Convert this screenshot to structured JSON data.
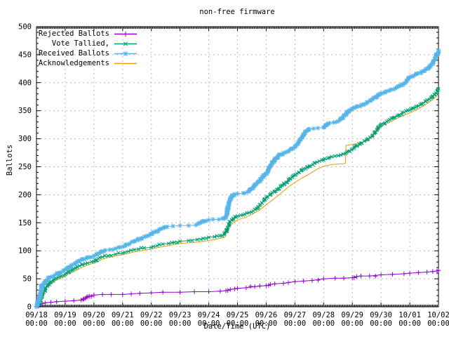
{
  "title": "non-free firmware",
  "axes": {
    "ylabel": "Ballots",
    "xlabel": "Date/Time (UTC)",
    "ylim": [
      0,
      500
    ],
    "y_tick_step": 50,
    "y_minor_step": 10,
    "y_ticks": [
      "0",
      "50",
      "100",
      "150",
      "200",
      "250",
      "300",
      "350",
      "400",
      "450",
      "500"
    ],
    "x_ticks": [
      {
        "date": "09/18",
        "time": "00:00"
      },
      {
        "date": "09/19",
        "time": "00:00"
      },
      {
        "date": "09/20",
        "time": "00:00"
      },
      {
        "date": "09/21",
        "time": "00:00"
      },
      {
        "date": "09/22",
        "time": "00:00"
      },
      {
        "date": "09/23",
        "time": "00:00"
      },
      {
        "date": "09/24",
        "time": "00:00"
      },
      {
        "date": "09/25",
        "time": "00:00"
      },
      {
        "date": "09/26",
        "time": "00:00"
      },
      {
        "date": "09/27",
        "time": "00:00"
      },
      {
        "date": "09/28",
        "time": "00:00"
      },
      {
        "date": "09/29",
        "time": "00:00"
      },
      {
        "date": "09/30",
        "time": "00:00"
      },
      {
        "date": "10/01",
        "time": "00:00"
      },
      {
        "date": "10/02",
        "time": "00:00"
      }
    ]
  },
  "colors": {
    "background": "#ffffff",
    "border": "#000000",
    "grid": "#bbbbbb",
    "text": "#000000"
  },
  "chart_data": {
    "type": "line",
    "title": "non-free firmware",
    "xlabel": "Date/Time (UTC)",
    "ylabel": "Ballots",
    "ylim": [
      0,
      500
    ],
    "xlim_days": [
      0,
      14
    ],
    "x_unit": "days since 09/18 00:00 UTC",
    "grid": "dashed, at major ticks",
    "legend_position": "top-left inside",
    "series": [
      {
        "name": "Rejected Ballots",
        "color": "#9400D3",
        "marker": "plus",
        "points": [
          [
            0,
            0
          ],
          [
            0.05,
            2
          ],
          [
            0.1,
            4
          ],
          [
            0.2,
            6
          ],
          [
            0.3,
            7
          ],
          [
            0.5,
            8
          ],
          [
            0.7,
            9
          ],
          [
            1,
            10
          ],
          [
            1.3,
            11
          ],
          [
            1.55,
            12
          ],
          [
            1.65,
            14
          ],
          [
            1.75,
            17
          ],
          [
            1.85,
            19
          ],
          [
            2,
            21
          ],
          [
            2.3,
            22
          ],
          [
            2.6,
            22
          ],
          [
            3,
            22
          ],
          [
            3.3,
            23
          ],
          [
            3.6,
            24
          ],
          [
            4,
            25
          ],
          [
            4.4,
            26
          ],
          [
            5,
            26
          ],
          [
            5.5,
            27
          ],
          [
            6,
            27
          ],
          [
            6.4,
            28
          ],
          [
            6.6,
            29
          ],
          [
            6.75,
            31
          ],
          [
            6.9,
            32
          ],
          [
            7,
            33
          ],
          [
            7.3,
            34
          ],
          [
            7.6,
            36
          ],
          [
            8,
            38
          ],
          [
            8.15,
            40
          ],
          [
            8.3,
            41
          ],
          [
            8.6,
            42
          ],
          [
            9,
            45
          ],
          [
            9.3,
            46
          ],
          [
            9.6,
            47
          ],
          [
            10,
            50
          ],
          [
            10.4,
            51
          ],
          [
            10.7,
            51
          ],
          [
            11,
            52
          ],
          [
            11.15,
            54
          ],
          [
            11.3,
            55
          ],
          [
            11.6,
            55
          ],
          [
            12,
            57
          ],
          [
            12.4,
            58
          ],
          [
            12.8,
            59
          ],
          [
            13,
            60
          ],
          [
            13.3,
            61
          ],
          [
            13.6,
            62
          ],
          [
            13.8,
            63
          ],
          [
            13.95,
            64
          ],
          [
            14,
            65
          ]
        ]
      },
      {
        "name": "Vote Tallied,",
        "color": "#009E73",
        "marker": "cross",
        "points": [
          [
            0,
            0
          ],
          [
            0.1,
            4
          ],
          [
            0.2,
            18
          ],
          [
            0.3,
            32
          ],
          [
            0.4,
            40
          ],
          [
            0.5,
            45
          ],
          [
            0.65,
            50
          ],
          [
            0.8,
            54
          ],
          [
            1,
            58
          ],
          [
            1.15,
            63
          ],
          [
            1.3,
            68
          ],
          [
            1.5,
            73
          ],
          [
            1.7,
            77
          ],
          [
            2,
            81
          ],
          [
            2.15,
            86
          ],
          [
            2.3,
            89
          ],
          [
            2.5,
            91
          ],
          [
            2.75,
            94
          ],
          [
            3,
            96
          ],
          [
            3.2,
            99
          ],
          [
            3.4,
            102
          ],
          [
            3.55,
            103
          ],
          [
            3.75,
            105
          ],
          [
            4,
            106
          ],
          [
            4.2,
            109
          ],
          [
            4.4,
            112
          ],
          [
            4.6,
            113
          ],
          [
            4.8,
            115
          ],
          [
            5,
            117
          ],
          [
            5.3,
            118
          ],
          [
            5.6,
            120
          ],
          [
            5.8,
            122
          ],
          [
            6,
            124
          ],
          [
            6.2,
            125
          ],
          [
            6.4,
            127
          ],
          [
            6.55,
            129
          ],
          [
            6.65,
            141
          ],
          [
            6.75,
            152
          ],
          [
            6.85,
            158
          ],
          [
            7,
            162
          ],
          [
            7.2,
            164
          ],
          [
            7.4,
            168
          ],
          [
            7.55,
            171
          ],
          [
            7.7,
            176
          ],
          [
            7.85,
            185
          ],
          [
            8,
            194
          ],
          [
            8.15,
            200
          ],
          [
            8.3,
            206
          ],
          [
            8.5,
            214
          ],
          [
            8.7,
            222
          ],
          [
            8.85,
            229
          ],
          [
            9,
            235
          ],
          [
            9.15,
            240
          ],
          [
            9.3,
            246
          ],
          [
            9.5,
            251
          ],
          [
            9.7,
            257
          ],
          [
            9.85,
            260
          ],
          [
            10,
            262
          ],
          [
            10.2,
            266
          ],
          [
            10.4,
            269
          ],
          [
            10.6,
            271
          ],
          [
            10.8,
            275
          ],
          [
            11,
            282
          ],
          [
            11.15,
            287
          ],
          [
            11.3,
            292
          ],
          [
            11.5,
            298
          ],
          [
            11.7,
            306
          ],
          [
            11.85,
            315
          ],
          [
            12,
            325
          ],
          [
            12.2,
            331
          ],
          [
            12.4,
            337
          ],
          [
            12.6,
            342
          ],
          [
            12.8,
            347
          ],
          [
            13,
            351
          ],
          [
            13.2,
            356
          ],
          [
            13.4,
            362
          ],
          [
            13.6,
            369
          ],
          [
            13.75,
            374
          ],
          [
            13.85,
            379
          ],
          [
            13.95,
            385
          ],
          [
            14,
            389
          ]
        ]
      },
      {
        "name": "Received Ballots",
        "color": "#56B4E9",
        "marker": "asterisk",
        "points": [
          [
            0,
            0
          ],
          [
            0.05,
            6
          ],
          [
            0.1,
            15
          ],
          [
            0.15,
            28
          ],
          [
            0.2,
            38
          ],
          [
            0.3,
            46
          ],
          [
            0.4,
            50
          ],
          [
            0.5,
            53
          ],
          [
            0.65,
            57
          ],
          [
            0.8,
            60
          ],
          [
            1,
            66
          ],
          [
            1.1,
            70
          ],
          [
            1.25,
            75
          ],
          [
            1.4,
            79
          ],
          [
            1.5,
            82
          ],
          [
            1.65,
            85
          ],
          [
            1.8,
            88
          ],
          [
            2,
            91
          ],
          [
            2.1,
            94
          ],
          [
            2.25,
            98
          ],
          [
            2.4,
            101
          ],
          [
            2.55,
            102
          ],
          [
            2.75,
            104
          ],
          [
            3,
            107
          ],
          [
            3.1,
            109
          ],
          [
            3.25,
            113
          ],
          [
            3.4,
            117
          ],
          [
            3.5,
            119
          ],
          [
            3.65,
            122
          ],
          [
            3.8,
            125
          ],
          [
            4,
            130
          ],
          [
            4.1,
            133
          ],
          [
            4.25,
            136
          ],
          [
            4.4,
            140
          ],
          [
            4.55,
            143
          ],
          [
            4.75,
            144
          ],
          [
            5,
            145
          ],
          [
            5.3,
            145
          ],
          [
            5.55,
            146
          ],
          [
            5.7,
            150
          ],
          [
            5.85,
            153
          ],
          [
            6,
            155
          ],
          [
            6.15,
            156
          ],
          [
            6.35,
            156
          ],
          [
            6.5,
            157
          ],
          [
            6.6,
            162
          ],
          [
            6.7,
            185
          ],
          [
            6.8,
            198
          ],
          [
            6.9,
            201
          ],
          [
            7,
            202
          ],
          [
            7.2,
            203
          ],
          [
            7.35,
            205
          ],
          [
            7.5,
            211
          ],
          [
            7.6,
            216
          ],
          [
            7.75,
            224
          ],
          [
            7.9,
            232
          ],
          [
            8,
            238
          ],
          [
            8.1,
            247
          ],
          [
            8.2,
            256
          ],
          [
            8.3,
            263
          ],
          [
            8.4,
            269
          ],
          [
            8.5,
            272
          ],
          [
            8.65,
            275
          ],
          [
            8.8,
            279
          ],
          [
            9,
            285
          ],
          [
            9.1,
            291
          ],
          [
            9.2,
            299
          ],
          [
            9.3,
            308
          ],
          [
            9.4,
            314
          ],
          [
            9.5,
            317
          ],
          [
            9.65,
            318
          ],
          [
            9.8,
            319
          ],
          [
            10,
            320
          ],
          [
            10.1,
            325
          ],
          [
            10.2,
            328
          ],
          [
            10.35,
            329
          ],
          [
            10.5,
            331
          ],
          [
            10.65,
            337
          ],
          [
            10.8,
            345
          ],
          [
            10.9,
            351
          ],
          [
            11,
            353
          ],
          [
            11.15,
            357
          ],
          [
            11.3,
            360
          ],
          [
            11.5,
            365
          ],
          [
            11.7,
            370
          ],
          [
            11.85,
            375
          ],
          [
            12,
            381
          ],
          [
            12.15,
            384
          ],
          [
            12.3,
            386
          ],
          [
            12.5,
            390
          ],
          [
            12.7,
            395
          ],
          [
            12.85,
            400
          ],
          [
            13,
            410
          ],
          [
            13.15,
            413
          ],
          [
            13.3,
            417
          ],
          [
            13.5,
            421
          ],
          [
            13.65,
            426
          ],
          [
            13.8,
            436
          ],
          [
            13.9,
            446
          ],
          [
            14,
            457
          ]
        ]
      },
      {
        "name": "Acknowledgements",
        "color": "#E69F00",
        "marker": "none",
        "points": [
          [
            0,
            0
          ],
          [
            0.15,
            8
          ],
          [
            0.25,
            22
          ],
          [
            0.35,
            33
          ],
          [
            0.5,
            41
          ],
          [
            0.7,
            48
          ],
          [
            1,
            55
          ],
          [
            1.3,
            63
          ],
          [
            1.5,
            68
          ],
          [
            1.75,
            74
          ],
          [
            2,
            78
          ],
          [
            2.3,
            85
          ],
          [
            2.5,
            88
          ],
          [
            2.75,
            91
          ],
          [
            3,
            93
          ],
          [
            3.25,
            96
          ],
          [
            3.5,
            99
          ],
          [
            3.75,
            101
          ],
          [
            4,
            103
          ],
          [
            4.25,
            106
          ],
          [
            4.5,
            108
          ],
          [
            4.75,
            111
          ],
          [
            5,
            113
          ],
          [
            5.5,
            115
          ],
          [
            6,
            118
          ],
          [
            6.3,
            121
          ],
          [
            6.55,
            124
          ],
          [
            6.65,
            136
          ],
          [
            6.8,
            148
          ],
          [
            7,
            155
          ],
          [
            7.3,
            160
          ],
          [
            7.5,
            165
          ],
          [
            7.75,
            172
          ],
          [
            8,
            182
          ],
          [
            8.25,
            192
          ],
          [
            8.5,
            202
          ],
          [
            8.75,
            213
          ],
          [
            9,
            222
          ],
          [
            9.25,
            230
          ],
          [
            9.5,
            237
          ],
          [
            9.75,
            245
          ],
          [
            10,
            251
          ],
          [
            10.3,
            254
          ],
          [
            10.6,
            255
          ],
          [
            10.76,
            256
          ],
          [
            10.78,
            288
          ],
          [
            11,
            290
          ],
          [
            11.3,
            293
          ],
          [
            11.5,
            296
          ],
          [
            11.7,
            303
          ],
          [
            11.85,
            313
          ],
          [
            12,
            322
          ],
          [
            12.25,
            328
          ],
          [
            12.5,
            335
          ],
          [
            12.75,
            341
          ],
          [
            13,
            346
          ],
          [
            13.25,
            352
          ],
          [
            13.5,
            359
          ],
          [
            13.7,
            366
          ],
          [
            13.85,
            372
          ],
          [
            14,
            380
          ]
        ]
      }
    ]
  }
}
